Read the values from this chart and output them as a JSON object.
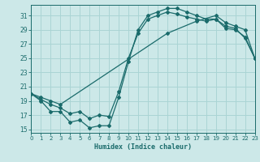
{
  "xlabel": "Humidex (Indice chaleur)",
  "xlim": [
    0,
    23
  ],
  "ylim": [
    14.5,
    32.5
  ],
  "xticks": [
    0,
    1,
    2,
    3,
    4,
    5,
    6,
    7,
    8,
    9,
    10,
    11,
    12,
    13,
    14,
    15,
    16,
    17,
    18,
    19,
    20,
    21,
    22,
    23
  ],
  "yticks": [
    15,
    17,
    19,
    21,
    23,
    25,
    27,
    29,
    31
  ],
  "background_color": "#cce8e8",
  "grid_color": "#aad4d4",
  "line_color": "#1a6b6b",
  "curve1_x": [
    0,
    1,
    2,
    3,
    4,
    5,
    6,
    7,
    8,
    9,
    10,
    11,
    12,
    13,
    14,
    15,
    16,
    17,
    18,
    19,
    20,
    21,
    22,
    23
  ],
  "curve1_y": [
    20.0,
    19.0,
    17.5,
    17.5,
    16.0,
    16.3,
    15.2,
    15.5,
    15.5,
    19.5,
    24.5,
    29.0,
    31.0,
    31.5,
    32.0,
    32.0,
    31.5,
    31.0,
    30.5,
    30.5,
    29.2,
    29.0,
    28.0,
    25.0
  ],
  "curve2_x": [
    0,
    1,
    2,
    3,
    4,
    5,
    6,
    7,
    8,
    9,
    10,
    11,
    12,
    13,
    14,
    15,
    16,
    17,
    18,
    19,
    20,
    21,
    22,
    23
  ],
  "curve2_y": [
    20.0,
    19.2,
    18.5,
    18.0,
    17.2,
    17.5,
    16.5,
    17.0,
    16.8,
    20.3,
    25.0,
    28.5,
    30.5,
    31.0,
    31.5,
    31.2,
    30.8,
    30.5,
    30.2,
    30.5,
    29.5,
    29.2,
    27.8,
    25.0
  ],
  "curve3_x": [
    0,
    1,
    2,
    3,
    14,
    17,
    19,
    20,
    21,
    22,
    23
  ],
  "curve3_y": [
    20.0,
    19.5,
    19.0,
    18.5,
    28.5,
    30.2,
    31.0,
    30.0,
    29.5,
    29.0,
    25.0
  ]
}
